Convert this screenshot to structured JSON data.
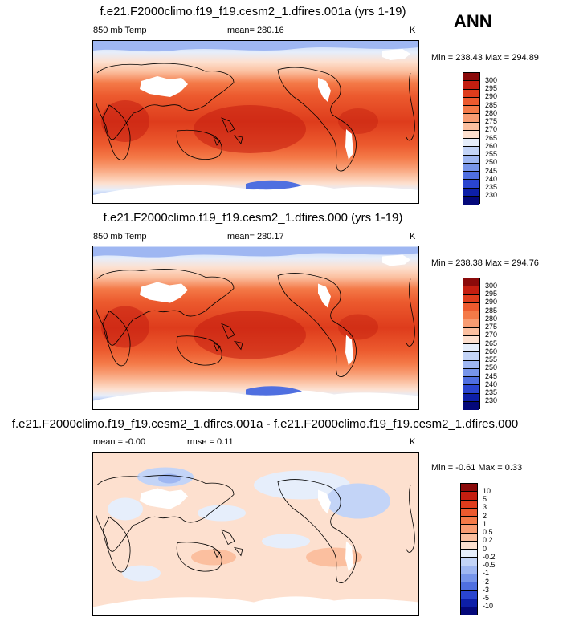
{
  "season": "ANN",
  "units": "K",
  "panels": [
    {
      "title": "f.e21.F2000climo.f19_f19.cesm2_1.dfires.001a (yrs 1-19)",
      "variable": "850 mb Temp",
      "stat": "mean= 280.16",
      "units": "K",
      "minmax": "Min = 238.43 Max = 294.89",
      "levels": [
        "300",
        "295",
        "290",
        "285",
        "280",
        "275",
        "270",
        "265",
        "260",
        "255",
        "250",
        "245",
        "240",
        "235",
        "230"
      ],
      "colors": [
        "#8a0a0a",
        "#c41e10",
        "#de3c1c",
        "#ec5a2e",
        "#f47a48",
        "#f89c72",
        "#fbbf9f",
        "#fde0cf",
        "#e6eefb",
        "#c3d4f7",
        "#9fb7f2",
        "#7795ea",
        "#4f6fe0",
        "#2a45cf",
        "#0d1fa8",
        "#04087a"
      ]
    },
    {
      "title": "f.e21.F2000climo.f19_f19.cesm2_1.dfires.000 (yrs 1-19)",
      "variable": "850 mb Temp",
      "stat": "mean= 280.17",
      "units": "K",
      "minmax": "Min = 238.38 Max = 294.76",
      "levels": [
        "300",
        "295",
        "290",
        "285",
        "280",
        "275",
        "270",
        "265",
        "260",
        "255",
        "250",
        "245",
        "240",
        "235",
        "230"
      ],
      "colors": [
        "#8a0a0a",
        "#c41e10",
        "#de3c1c",
        "#ec5a2e",
        "#f47a48",
        "#f89c72",
        "#fbbf9f",
        "#fde0cf",
        "#e6eefb",
        "#c3d4f7",
        "#9fb7f2",
        "#7795ea",
        "#4f6fe0",
        "#2a45cf",
        "#0d1fa8",
        "#04087a"
      ]
    },
    {
      "title": "f.e21.F2000climo.f19_f19.cesm2_1.dfires.001a - f.e21.F2000climo.f19_f19.cesm2_1.dfires.000",
      "variable": "mean =  -0.00",
      "stat": "rmse =  0.11",
      "units": "K",
      "minmax": "Min =  -0.61 Max =  0.33",
      "levels": [
        "10",
        "5",
        "3",
        "2",
        "1",
        "0.5",
        "0.2",
        "0",
        "-0.2",
        "-0.5",
        "-1",
        "-2",
        "-3",
        "-5",
        "-10"
      ],
      "colors": [
        "#8a0a0a",
        "#c41e10",
        "#de3c1c",
        "#ec5a2e",
        "#f47a48",
        "#f89c72",
        "#fbbf9f",
        "#fde0cf",
        "#e6eefb",
        "#c3d4f7",
        "#9fb7f2",
        "#7795ea",
        "#4f6fe0",
        "#2a45cf",
        "#0d1fa8",
        "#04087a"
      ]
    }
  ]
}
